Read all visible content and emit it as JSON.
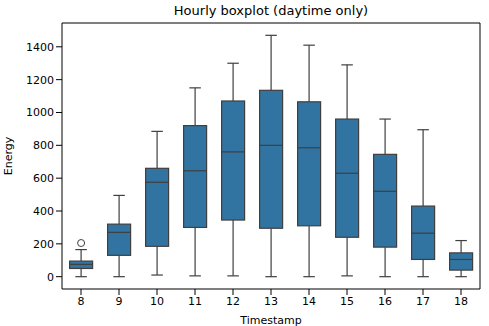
{
  "chart_data": {
    "type": "boxplot",
    "title": "Hourly boxplot (daytime only)",
    "x_label": "Timestamp",
    "y_label": "Energy",
    "categories": [
      "8",
      "9",
      "10",
      "11",
      "12",
      "13",
      "14",
      "15",
      "16",
      "17",
      "18"
    ],
    "min": [
      0,
      0,
      10,
      5,
      5,
      0,
      0,
      5,
      0,
      0,
      0
    ],
    "q1": [
      50,
      130,
      185,
      300,
      345,
      295,
      310,
      240,
      180,
      105,
      40
    ],
    "median": [
      75,
      270,
      575,
      645,
      760,
      800,
      785,
      630,
      520,
      265,
      105
    ],
    "q3": [
      95,
      320,
      660,
      920,
      1070,
      1135,
      1065,
      960,
      745,
      430,
      145
    ],
    "max": [
      165,
      495,
      885,
      1150,
      1300,
      1470,
      1410,
      1290,
      960,
      895,
      220
    ],
    "outliers": [
      [
        205
      ],
      [],
      [],
      [],
      [],
      [],
      [],
      [],
      [],
      [],
      []
    ],
    "color": "#3274a1",
    "ylim": [
      -75,
      1545
    ],
    "yticks": [
      0,
      200,
      400,
      600,
      800,
      1000,
      1200,
      1400
    ],
    "grid": false
  }
}
